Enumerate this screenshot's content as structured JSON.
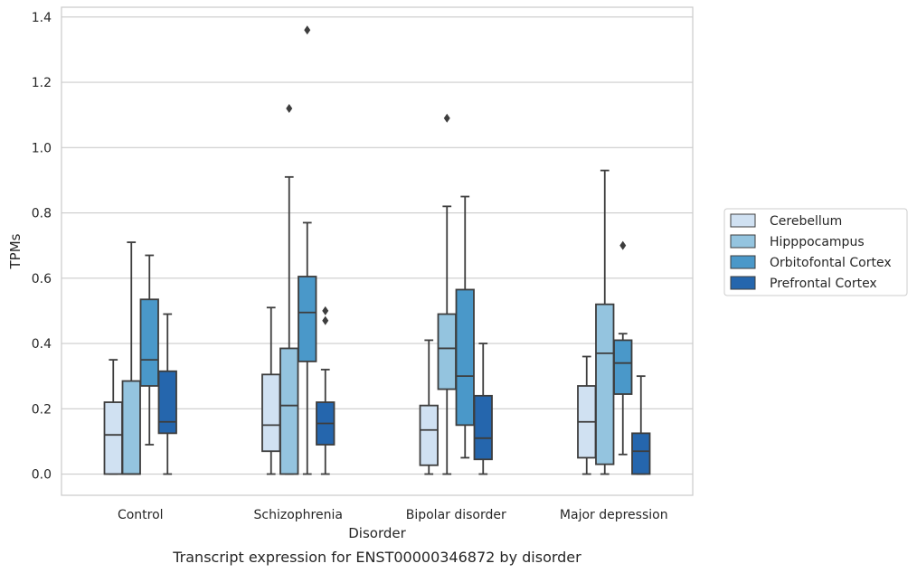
{
  "chart_data": {
    "type": "box",
    "caption": "Transcript expression for ENST00000346872 by disorder",
    "xlabel": "Disorder",
    "ylabel": "TPMs",
    "ylim": [
      -0.065,
      1.43
    ],
    "yticks": [
      0.0,
      0.2,
      0.4,
      0.6,
      0.8,
      1.0,
      1.2,
      1.4
    ],
    "ytick_labels": [
      "0.0",
      "0.2",
      "0.4",
      "0.6",
      "0.8",
      "1.0",
      "1.2",
      "1.4"
    ],
    "grid": true,
    "legend_position": "right",
    "categories": [
      "Control",
      "Schizophrenia",
      "Bipolar disorder",
      "Major depression"
    ],
    "series": [
      {
        "name": "Cerebellum",
        "color": "#d0e1f2",
        "boxes": [
          {
            "whislo": 0.0,
            "q1": 0.0,
            "med": 0.12,
            "q3": 0.22,
            "whishi": 0.35,
            "fliers": []
          },
          {
            "whislo": 0.0,
            "q1": 0.07,
            "med": 0.15,
            "q3": 0.305,
            "whishi": 0.51,
            "fliers": []
          },
          {
            "whislo": 0.0,
            "q1": 0.027,
            "med": 0.135,
            "q3": 0.21,
            "whishi": 0.41,
            "fliers": []
          },
          {
            "whislo": 0.0,
            "q1": 0.05,
            "med": 0.16,
            "q3": 0.27,
            "whishi": 0.36,
            "fliers": []
          }
        ]
      },
      {
        "name": "Hipppocampus",
        "color": "#94c4df",
        "boxes": [
          {
            "whislo": 0.0,
            "q1": 0.0,
            "med": 0.0,
            "q3": 0.285,
            "whishi": 0.71,
            "fliers": []
          },
          {
            "whislo": 0.0,
            "q1": 0.0,
            "med": 0.21,
            "q3": 0.385,
            "whishi": 0.91,
            "fliers": [
              1.12
            ]
          },
          {
            "whislo": 0.0,
            "q1": 0.26,
            "med": 0.385,
            "q3": 0.49,
            "whishi": 0.82,
            "fliers": [
              1.09
            ]
          },
          {
            "whislo": 0.0,
            "q1": 0.03,
            "med": 0.37,
            "q3": 0.52,
            "whishi": 0.93,
            "fliers": []
          }
        ]
      },
      {
        "name": "Orbitofontal Cortex",
        "color": "#4a98c9",
        "boxes": [
          {
            "whislo": 0.09,
            "q1": 0.27,
            "med": 0.35,
            "q3": 0.535,
            "whishi": 0.67,
            "fliers": []
          },
          {
            "whislo": 0.0,
            "q1": 0.345,
            "med": 0.495,
            "q3": 0.605,
            "whishi": 0.77,
            "fliers": [
              1.36
            ]
          },
          {
            "whislo": 0.05,
            "q1": 0.15,
            "med": 0.3,
            "q3": 0.565,
            "whishi": 0.85,
            "fliers": []
          },
          {
            "whislo": 0.06,
            "q1": 0.245,
            "med": 0.34,
            "q3": 0.41,
            "whishi": 0.43,
            "fliers": [
              0.7
            ]
          }
        ]
      },
      {
        "name": "Prefrontal Cortex",
        "color": "#2566ad",
        "boxes": [
          {
            "whislo": 0.0,
            "q1": 0.125,
            "med": 0.16,
            "q3": 0.315,
            "whishi": 0.49,
            "fliers": []
          },
          {
            "whislo": 0.0,
            "q1": 0.09,
            "med": 0.155,
            "q3": 0.22,
            "whishi": 0.32,
            "fliers": [
              0.47,
              0.5
            ]
          },
          {
            "whislo": 0.0,
            "q1": 0.045,
            "med": 0.11,
            "q3": 0.24,
            "whishi": 0.4,
            "fliers": []
          },
          {
            "whislo": 0.0,
            "q1": 0.0,
            "med": 0.07,
            "q3": 0.125,
            "whishi": 0.3,
            "fliers": []
          }
        ]
      }
    ]
  }
}
